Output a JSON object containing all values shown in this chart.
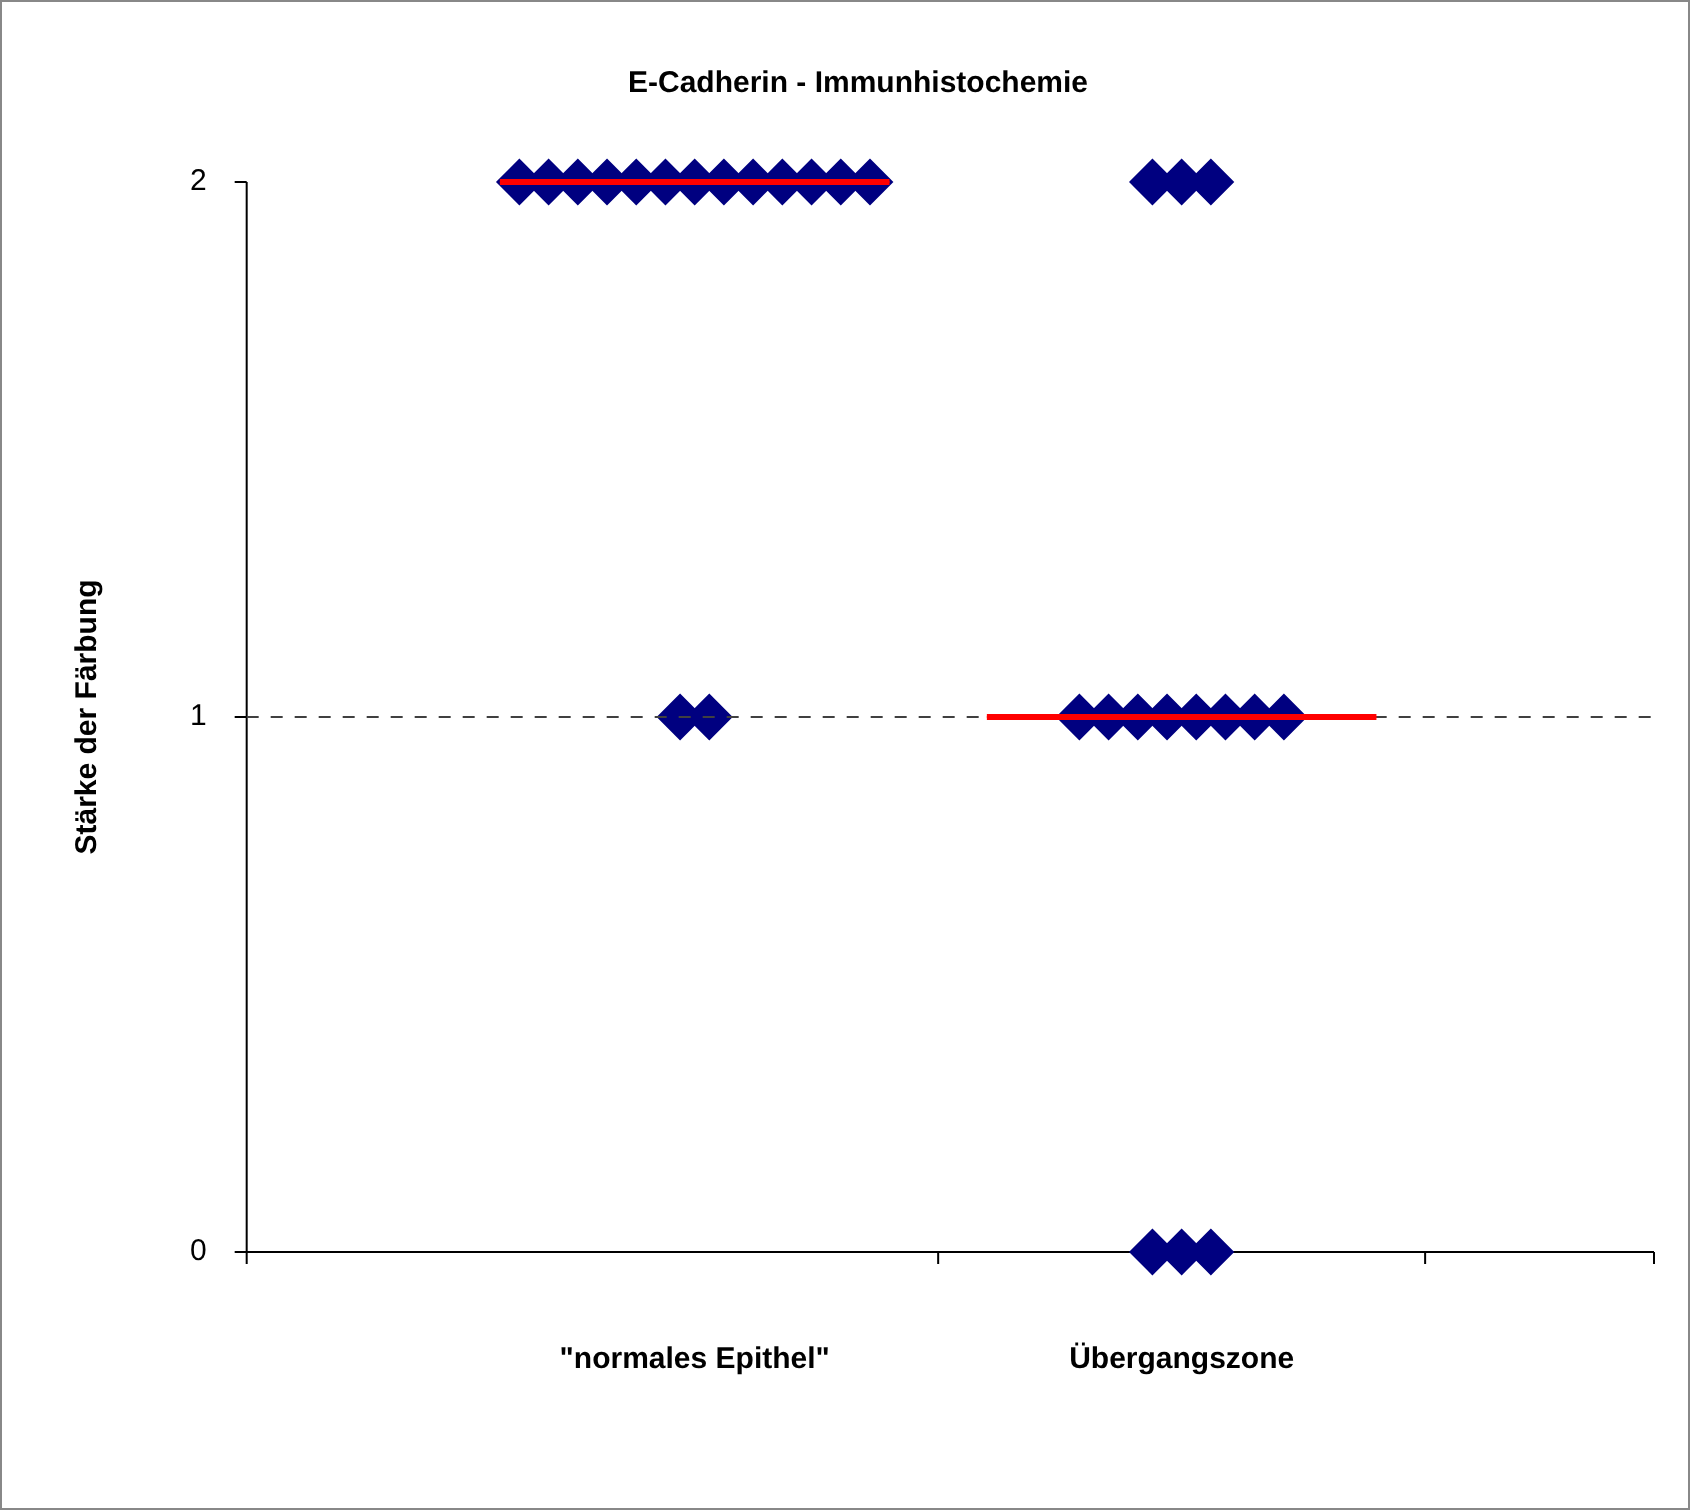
{
  "chart_data": {
    "type": "scatter",
    "title": "E-Cadherin - Immunhistochemie",
    "ylabel": "Stärke der Färbung",
    "categories": [
      "\"normales Epithel\"",
      "Übergangszone"
    ],
    "series": [
      {
        "color": "#000080",
        "marker": "diamond",
        "x": [
          "\"normales Epithel\"",
          "\"normales Epithel\"",
          "\"normales Epithel\"",
          "\"normales Epithel\"",
          "\"normales Epithel\"",
          "\"normales Epithel\"",
          "\"normales Epithel\"",
          "\"normales Epithel\"",
          "\"normales Epithel\"",
          "\"normales Epithel\"",
          "\"normales Epithel\"",
          "\"normales Epithel\"",
          "\"normales Epithel\"",
          "\"normales Epithel\"",
          "\"normales Epithel\"",
          "Übergangszone",
          "Übergangszone",
          "Übergangszone",
          "Übergangszone",
          "Übergangszone",
          "Übergangszone",
          "Übergangszone",
          "Übergangszone",
          "Übergangszone",
          "Übergangszone",
          "Übergangszone",
          "Übergangszone",
          "Übergangszone",
          "Übergangszone"
        ],
        "values": [
          2,
          2,
          2,
          2,
          2,
          2,
          2,
          2,
          2,
          2,
          2,
          2,
          2,
          1,
          1,
          2,
          2,
          2,
          1,
          1,
          1,
          1,
          1,
          1,
          1,
          1,
          0,
          0,
          0
        ]
      },
      {
        "type": "box",
        "color": "#ff0000",
        "boxes": [
          {
            "low": 2,
            "q1": 2,
            "median": 2,
            "q3": 2,
            "high": 2
          },
          {
            "low": 1,
            "q1": 1,
            "median": 1,
            "q3": 1,
            "high": 1
          }
        ]
      }
    ],
    "ylim": [
      0,
      2
    ],
    "yticks": [
      0,
      1,
      2
    ],
    "grid": false,
    "legend": false,
    "ref_lines": [
      {
        "axis": "y",
        "value": 1,
        "color": "#404040",
        "line_style": "dashed"
      }
    ]
  }
}
